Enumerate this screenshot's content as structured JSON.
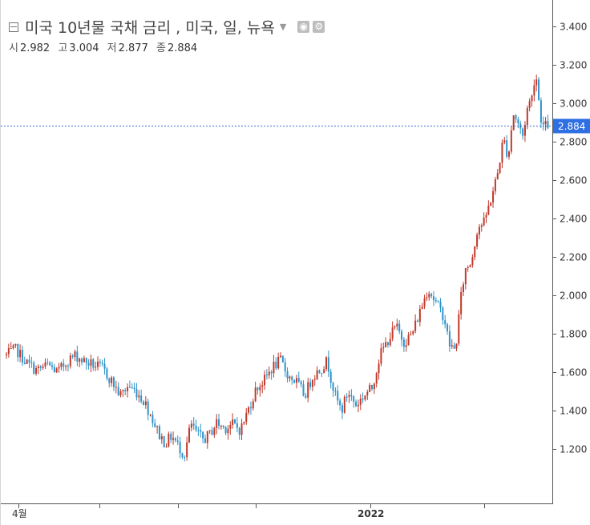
{
  "header": {
    "title": "미국 10년물 국채 금리 , 미국, 일, 뉴욕",
    "ohlc": [
      {
        "label": "시",
        "value": "2.982"
      },
      {
        "label": "고",
        "value": "3.004"
      },
      {
        "label": "저",
        "value": "2.877"
      },
      {
        "label": "종",
        "value": "2.884"
      }
    ]
  },
  "colors": {
    "up": "#c0392b",
    "down": "#2e93c9",
    "current_line": "#3b6fd1",
    "price_tag": "#2f6fe4"
  },
  "chart_data": {
    "type": "candlestick",
    "y_axis": {
      "ticks": [
        "1.200",
        "1.400",
        "1.600",
        "1.800",
        "2.000",
        "2.200",
        "2.400",
        "2.600",
        "2.800",
        "3.000",
        "3.200",
        "3.400"
      ],
      "min": 1.06,
      "max": 3.46
    },
    "x_axis": {
      "labels": [
        "4월",
        "2022"
      ]
    },
    "current_price": "2.884",
    "close_path": [
      [
        0,
        1.69
      ],
      [
        12,
        1.72
      ],
      [
        25,
        1.65
      ],
      [
        38,
        1.61
      ],
      [
        52,
        1.64
      ],
      [
        64,
        1.6
      ],
      [
        76,
        1.66
      ],
      [
        86,
        1.69
      ],
      [
        96,
        1.66
      ],
      [
        108,
        1.64
      ],
      [
        120,
        1.62
      ],
      [
        132,
        1.55
      ],
      [
        142,
        1.48
      ],
      [
        152,
        1.53
      ],
      [
        162,
        1.5
      ],
      [
        172,
        1.45
      ],
      [
        182,
        1.36
      ],
      [
        190,
        1.28
      ],
      [
        198,
        1.23
      ],
      [
        206,
        1.27
      ],
      [
        214,
        1.22
      ],
      [
        222,
        1.17
      ],
      [
        230,
        1.33
      ],
      [
        238,
        1.28
      ],
      [
        246,
        1.25
      ],
      [
        254,
        1.28
      ],
      [
        262,
        1.34
      ],
      [
        272,
        1.31
      ],
      [
        282,
        1.33
      ],
      [
        292,
        1.3
      ],
      [
        302,
        1.41
      ],
      [
        312,
        1.52
      ],
      [
        322,
        1.56
      ],
      [
        332,
        1.63
      ],
      [
        342,
        1.66
      ],
      [
        352,
        1.58
      ],
      [
        362,
        1.55
      ],
      [
        372,
        1.48
      ],
      [
        382,
        1.58
      ],
      [
        392,
        1.62
      ],
      [
        400,
        1.66
      ],
      [
        410,
        1.48
      ],
      [
        418,
        1.4
      ],
      [
        426,
        1.5
      ],
      [
        436,
        1.43
      ],
      [
        446,
        1.48
      ],
      [
        456,
        1.52
      ],
      [
        466,
        1.69
      ],
      [
        476,
        1.77
      ],
      [
        486,
        1.84
      ],
      [
        496,
        1.76
      ],
      [
        506,
        1.8
      ],
      [
        516,
        1.92
      ],
      [
        526,
        2.04
      ],
      [
        536,
        1.96
      ],
      [
        546,
        1.89
      ],
      [
        552,
        1.75
      ],
      [
        560,
        1.71
      ],
      [
        566,
        1.96
      ],
      [
        572,
        2.13
      ],
      [
        580,
        2.18
      ],
      [
        588,
        2.36
      ],
      [
        596,
        2.38
      ],
      [
        604,
        2.5
      ],
      [
        612,
        2.62
      ],
      [
        620,
        2.82
      ],
      [
        626,
        2.72
      ],
      [
        632,
        2.95
      ],
      [
        638,
        2.9
      ],
      [
        644,
        2.83
      ],
      [
        650,
        2.98
      ],
      [
        656,
        3.04
      ],
      [
        660,
        3.18
      ],
      [
        666,
        2.94
      ],
      [
        670,
        2.88
      ],
      [
        676,
        2.89
      ]
    ]
  }
}
